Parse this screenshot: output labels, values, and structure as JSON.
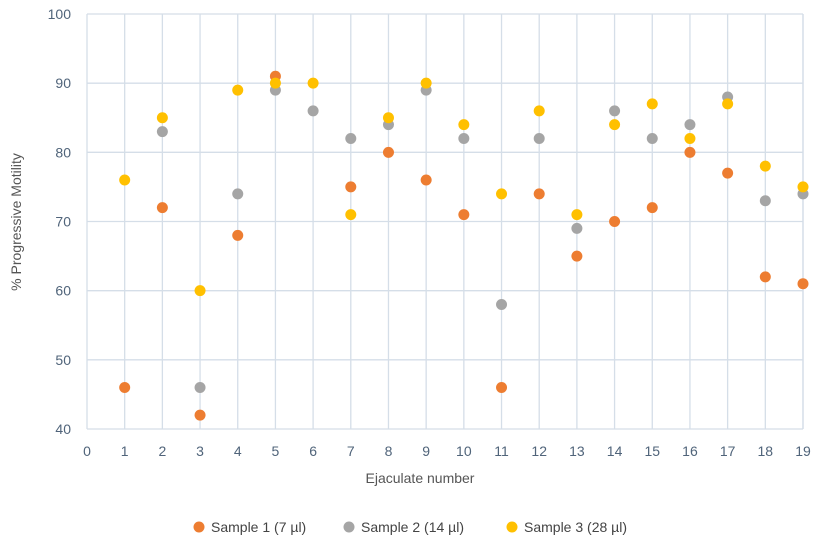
{
  "chart_data": {
    "type": "scatter",
    "xlabel": "Ejaculate number",
    "ylabel": "% Progressive Motility",
    "xlim": [
      0,
      19
    ],
    "ylim": [
      40,
      100
    ],
    "x_ticks": [
      0,
      1,
      2,
      3,
      4,
      5,
      6,
      7,
      8,
      9,
      10,
      11,
      12,
      13,
      14,
      15,
      16,
      17,
      18,
      19
    ],
    "y_ticks": [
      40,
      50,
      60,
      70,
      80,
      90,
      100
    ],
    "grid": true,
    "legend_position": "bottom",
    "series": [
      {
        "name": "Sample 1 (7 µl)",
        "color": "#ED7D31",
        "points": [
          [
            1,
            46
          ],
          [
            2,
            72
          ],
          [
            3,
            42
          ],
          [
            4,
            68
          ],
          [
            5,
            91
          ],
          [
            7,
            75
          ],
          [
            8,
            80
          ],
          [
            9,
            76
          ],
          [
            10,
            71
          ],
          [
            11,
            46
          ],
          [
            12,
            74
          ],
          [
            13,
            65
          ],
          [
            14,
            70
          ],
          [
            15,
            72
          ],
          [
            16,
            80
          ],
          [
            17,
            77
          ],
          [
            18,
            62
          ],
          [
            19,
            61
          ]
        ]
      },
      {
        "name": "Sample 2 (14 µl)",
        "color": "#A5A5A5",
        "points": [
          [
            2,
            83
          ],
          [
            3,
            46
          ],
          [
            4,
            74
          ],
          [
            5,
            89
          ],
          [
            6,
            86
          ],
          [
            7,
            82
          ],
          [
            8,
            84
          ],
          [
            9,
            89
          ],
          [
            10,
            82
          ],
          [
            11,
            58
          ],
          [
            12,
            82
          ],
          [
            13,
            69
          ],
          [
            14,
            86
          ],
          [
            15,
            82
          ],
          [
            16,
            84
          ],
          [
            17,
            88
          ],
          [
            18,
            73
          ],
          [
            19,
            74
          ]
        ]
      },
      {
        "name": "Sample 3 (28 µl)",
        "color": "#FFC000",
        "points": [
          [
            1,
            76
          ],
          [
            2,
            85
          ],
          [
            3,
            60
          ],
          [
            4,
            89
          ],
          [
            5,
            90
          ],
          [
            6,
            90
          ],
          [
            7,
            71
          ],
          [
            8,
            85
          ],
          [
            9,
            90
          ],
          [
            10,
            84
          ],
          [
            11,
            74
          ],
          [
            12,
            86
          ],
          [
            13,
            71
          ],
          [
            14,
            84
          ],
          [
            15,
            87
          ],
          [
            16,
            82
          ],
          [
            17,
            87
          ],
          [
            18,
            78
          ],
          [
            19,
            75
          ]
        ]
      }
    ]
  }
}
